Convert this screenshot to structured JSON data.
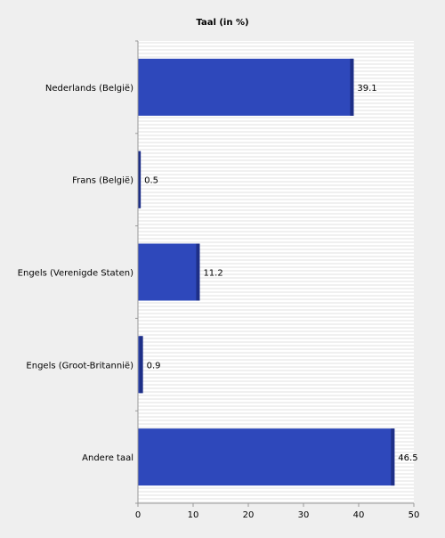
{
  "chart_data": {
    "type": "bar",
    "orientation": "horizontal",
    "title": "Taal (in %)",
    "xlabel": "",
    "ylabel": "",
    "categories": [
      "Nederlands (België)",
      "Frans (België)",
      "Engels (Verenigde Staten)",
      "Engels (Groot-Britannië)",
      "Andere taal"
    ],
    "values": [
      39.1,
      0.5,
      11.2,
      0.9,
      46.5
    ],
    "value_labels": [
      "39.1",
      "0.5",
      "11.2",
      "0.9",
      "46.5"
    ],
    "xlim": [
      0,
      50
    ],
    "xticks": [
      0,
      10,
      20,
      30,
      40,
      50
    ],
    "xtick_labels": [
      "0",
      "10",
      "20",
      "30",
      "40",
      "50"
    ],
    "grid": "horizontal-stripes",
    "legend": "none",
    "colors": {
      "bar": "#2e48bb",
      "bar_shade": "#1e2f87",
      "background": "#efefef",
      "plot_background": "#ffffff",
      "grid": "#e2e2e2",
      "axis": "#999999"
    }
  }
}
